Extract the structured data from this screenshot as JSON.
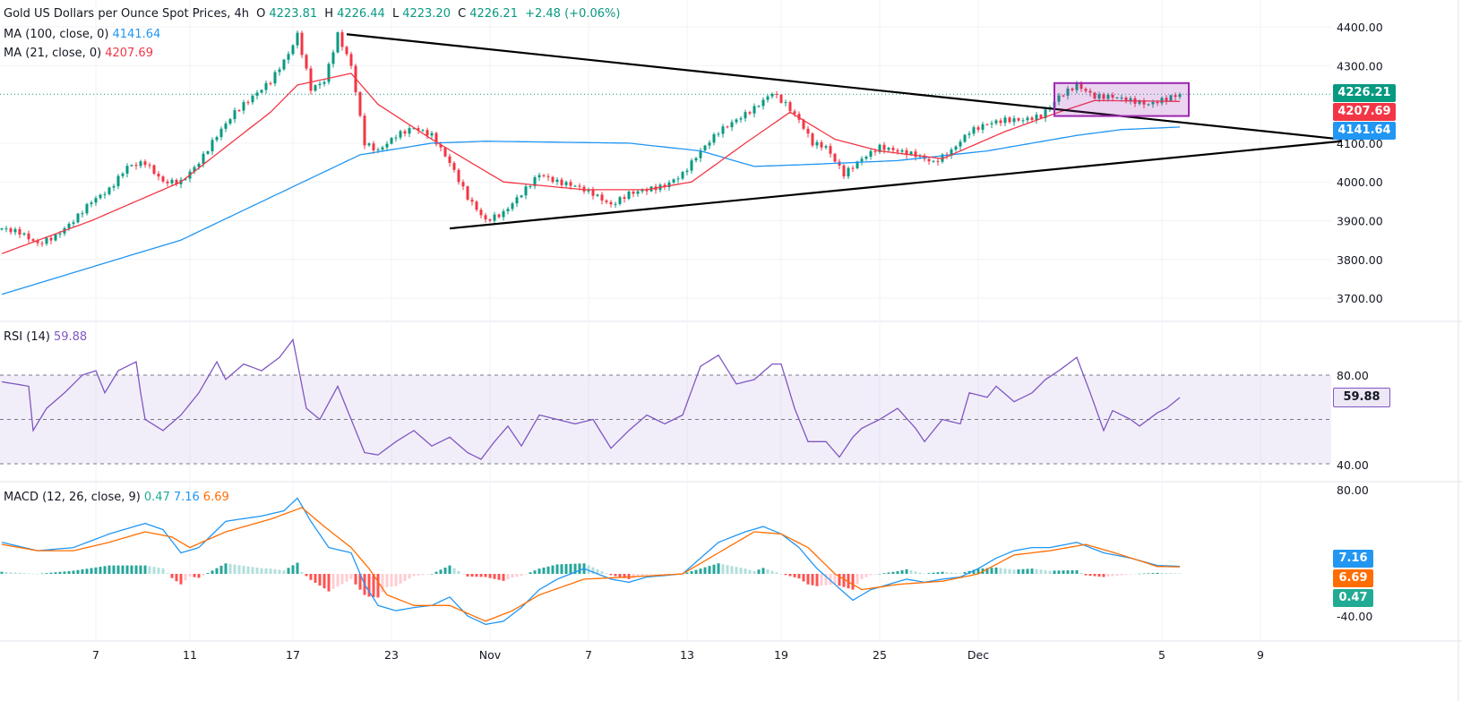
{
  "header": {
    "title": "Gold US Dollars per Ounce Spot Prices, 4h",
    "o_label": "O",
    "o": "4223.81",
    "h_label": "H",
    "h": "4226.44",
    "l_label": "L",
    "l": "4223.20",
    "c_label": "C",
    "c": "4226.21",
    "change": "+2.48 (+0.06%)"
  },
  "indicators": {
    "ma100_label": "MA (100, close, 0)",
    "ma100_value": "4141.64",
    "ma21_label": "MA (21, close, 0)",
    "ma21_value": "4207.69",
    "rsi_label": "RSI (14)",
    "rsi_value": "59.88",
    "macd_label": "MACD (12, 26, close, 9)",
    "macd_value": "0.47",
    "macd_line_value": "7.16",
    "signal_value": "6.69"
  },
  "price_tags": {
    "last": "4226.21",
    "ma21": "4207.69",
    "ma100": "4141.64",
    "rsi": "59.88",
    "macd_line": "7.16",
    "signal": "6.69",
    "hist": "0.47"
  },
  "colors": {
    "up": "#089981",
    "down": "#f23645",
    "ma100": "#2196f3",
    "ma21": "#f23645",
    "rsi": "#7e57c2",
    "macd": "#2196f3",
    "signal": "#ff6d00",
    "box": "#9c27b0"
  },
  "chart_data": {
    "type": "candlestick",
    "title": "Gold US Dollars per Ounce Spot Prices, 4h",
    "price_axis": {
      "range": [
        3700,
        4400
      ],
      "ticks": [
        "4400.00",
        "4300.00",
        "4100.00",
        "4000.00",
        "3900.00",
        "3800.00",
        "3700.00"
      ]
    },
    "x_ticks": [
      {
        "label": "7",
        "bar": 21
      },
      {
        "label": "11",
        "bar": 42
      },
      {
        "label": "17",
        "bar": 65
      },
      {
        "label": "23",
        "bar": 87
      },
      {
        "label": "Nov",
        "bar": 109
      },
      {
        "label": "7",
        "bar": 131
      },
      {
        "label": "13",
        "bar": 153
      },
      {
        "label": "19",
        "bar": 174
      },
      {
        "label": "25",
        "bar": 196
      },
      {
        "label": "Dec",
        "bar": 218
      },
      {
        "label": "5",
        "bar": 259
      },
      {
        "label": "9",
        "bar": 281
      }
    ],
    "close": [
      [
        0,
        3880
      ],
      [
        4,
        3870
      ],
      [
        8,
        3840
      ],
      [
        12,
        3860
      ],
      [
        16,
        3900
      ],
      [
        20,
        3950
      ],
      [
        24,
        3980
      ],
      [
        28,
        4040
      ],
      [
        32,
        4050
      ],
      [
        36,
        4000
      ],
      [
        40,
        4000
      ],
      [
        44,
        4050
      ],
      [
        48,
        4120
      ],
      [
        52,
        4180
      ],
      [
        56,
        4220
      ],
      [
        60,
        4260
      ],
      [
        64,
        4330
      ],
      [
        66,
        4380
      ],
      [
        69,
        4240
      ],
      [
        72,
        4260
      ],
      [
        75,
        4380
      ],
      [
        78,
        4300
      ],
      [
        81,
        4100
      ],
      [
        84,
        4080
      ],
      [
        88,
        4120
      ],
      [
        92,
        4140
      ],
      [
        96,
        4120
      ],
      [
        100,
        4050
      ],
      [
        104,
        3960
      ],
      [
        108,
        3900
      ],
      [
        112,
        3920
      ],
      [
        116,
        3970
      ],
      [
        120,
        4020
      ],
      [
        124,
        4000
      ],
      [
        128,
        3990
      ],
      [
        132,
        3970
      ],
      [
        136,
        3940
      ],
      [
        140,
        3970
      ],
      [
        144,
        3980
      ],
      [
        148,
        3990
      ],
      [
        152,
        4020
      ],
      [
        156,
        4080
      ],
      [
        160,
        4130
      ],
      [
        164,
        4160
      ],
      [
        168,
        4190
      ],
      [
        172,
        4230
      ],
      [
        175,
        4200
      ],
      [
        178,
        4160
      ],
      [
        181,
        4100
      ],
      [
        184,
        4090
      ],
      [
        188,
        4020
      ],
      [
        192,
        4060
      ],
      [
        196,
        4090
      ],
      [
        200,
        4080
      ],
      [
        204,
        4070
      ],
      [
        208,
        4050
      ],
      [
        212,
        4080
      ],
      [
        216,
        4130
      ],
      [
        220,
        4150
      ],
      [
        224,
        4160
      ],
      [
        228,
        4160
      ],
      [
        232,
        4170
      ],
      [
        236,
        4220
      ],
      [
        240,
        4250
      ],
      [
        244,
        4220
      ],
      [
        248,
        4220
      ],
      [
        252,
        4210
      ],
      [
        256,
        4200
      ],
      [
        260,
        4215
      ],
      [
        263,
        4226.21
      ]
    ],
    "ma100": [
      [
        0,
        3710
      ],
      [
        40,
        3850
      ],
      [
        60,
        3960
      ],
      [
        80,
        4070
      ],
      [
        96,
        4100
      ],
      [
        108,
        4105
      ],
      [
        140,
        4100
      ],
      [
        156,
        4080
      ],
      [
        168,
        4040
      ],
      [
        180,
        4045
      ],
      [
        200,
        4055
      ],
      [
        220,
        4080
      ],
      [
        240,
        4120
      ],
      [
        250,
        4135
      ],
      [
        263,
        4141.64
      ]
    ],
    "ma21": [
      [
        0,
        3815
      ],
      [
        20,
        3900
      ],
      [
        40,
        4000
      ],
      [
        60,
        4180
      ],
      [
        66,
        4250
      ],
      [
        78,
        4280
      ],
      [
        84,
        4200
      ],
      [
        96,
        4110
      ],
      [
        112,
        4000
      ],
      [
        130,
        3980
      ],
      [
        144,
        3980
      ],
      [
        154,
        4000
      ],
      [
        166,
        4100
      ],
      [
        176,
        4180
      ],
      [
        186,
        4110
      ],
      [
        196,
        4080
      ],
      [
        210,
        4060
      ],
      [
        224,
        4130
      ],
      [
        236,
        4180
      ],
      [
        244,
        4210
      ],
      [
        263,
        4207.69
      ]
    ],
    "triangle": {
      "upper": {
        "from": [
          77,
          4381
        ],
        "to": [
          299,
          4110
        ]
      },
      "lower": {
        "from": [
          100,
          3880
        ],
        "to": [
          299,
          4105
        ]
      }
    },
    "range_box": {
      "bars": [
        235,
        265
      ],
      "prices": [
        4170,
        4255
      ]
    },
    "rsi": {
      "range_labels": [
        "80.00",
        "40.00"
      ],
      "bands": [
        30,
        50,
        70
      ],
      "values": [
        [
          0,
          67
        ],
        [
          6,
          65
        ],
        [
          7,
          45
        ],
        [
          10,
          55
        ],
        [
          14,
          62
        ],
        [
          18,
          70
        ],
        [
          21,
          72
        ],
        [
          23,
          62
        ],
        [
          26,
          72
        ],
        [
          30,
          76
        ],
        [
          31,
          62
        ],
        [
          32,
          50
        ],
        [
          36,
          45
        ],
        [
          40,
          52
        ],
        [
          44,
          62
        ],
        [
          48,
          76
        ],
        [
          50,
          68
        ],
        [
          54,
          75
        ],
        [
          58,
          72
        ],
        [
          62,
          78
        ],
        [
          65,
          86
        ],
        [
          68,
          55
        ],
        [
          71,
          50
        ],
        [
          75,
          65
        ],
        [
          78,
          50
        ],
        [
          81,
          35
        ],
        [
          84,
          34
        ],
        [
          88,
          40
        ],
        [
          92,
          45
        ],
        [
          96,
          38
        ],
        [
          100,
          42
        ],
        [
          104,
          35
        ],
        [
          107,
          32
        ],
        [
          110,
          40
        ],
        [
          113,
          47
        ],
        [
          116,
          38
        ],
        [
          120,
          52
        ],
        [
          124,
          50
        ],
        [
          128,
          48
        ],
        [
          132,
          50
        ],
        [
          136,
          37
        ],
        [
          140,
          45
        ],
        [
          144,
          52
        ],
        [
          148,
          48
        ],
        [
          152,
          52
        ],
        [
          156,
          74
        ],
        [
          160,
          79
        ],
        [
          164,
          66
        ],
        [
          168,
          68
        ],
        [
          172,
          75
        ],
        [
          174,
          75
        ],
        [
          177,
          55
        ],
        [
          180,
          40
        ],
        [
          184,
          40
        ],
        [
          187,
          33
        ],
        [
          190,
          42
        ],
        [
          192,
          46
        ],
        [
          196,
          50
        ],
        [
          200,
          55
        ],
        [
          204,
          46
        ],
        [
          206,
          40
        ],
        [
          210,
          50
        ],
        [
          214,
          48
        ],
        [
          216,
          62
        ],
        [
          220,
          60
        ],
        [
          222,
          65
        ],
        [
          226,
          58
        ],
        [
          230,
          62
        ],
        [
          233,
          68
        ],
        [
          236,
          72
        ],
        [
          240,
          78
        ],
        [
          243,
          62
        ],
        [
          246,
          45
        ],
        [
          248,
          54
        ],
        [
          252,
          50
        ],
        [
          254,
          47
        ],
        [
          258,
          53
        ],
        [
          260,
          55
        ],
        [
          263,
          59.88
        ]
      ]
    },
    "macd": {
      "range_labels": [
        "80.00",
        "-40.00"
      ],
      "macd": [
        [
          0,
          30
        ],
        [
          8,
          22
        ],
        [
          16,
          25
        ],
        [
          24,
          38
        ],
        [
          32,
          48
        ],
        [
          36,
          42
        ],
        [
          40,
          20
        ],
        [
          44,
          25
        ],
        [
          50,
          50
        ],
        [
          58,
          55
        ],
        [
          63,
          60
        ],
        [
          66,
          72
        ],
        [
          69,
          50
        ],
        [
          73,
          25
        ],
        [
          78,
          20
        ],
        [
          81,
          -10
        ],
        [
          84,
          -30
        ],
        [
          88,
          -35
        ],
        [
          92,
          -32
        ],
        [
          96,
          -30
        ],
        [
          100,
          -22
        ],
        [
          104,
          -40
        ],
        [
          108,
          -48
        ],
        [
          112,
          -45
        ],
        [
          116,
          -32
        ],
        [
          120,
          -15
        ],
        [
          124,
          -5
        ],
        [
          130,
          5
        ],
        [
          136,
          -5
        ],
        [
          140,
          -8
        ],
        [
          144,
          -3
        ],
        [
          152,
          0
        ],
        [
          156,
          15
        ],
        [
          160,
          30
        ],
        [
          166,
          40
        ],
        [
          170,
          45
        ],
        [
          174,
          38
        ],
        [
          178,
          25
        ],
        [
          182,
          5
        ],
        [
          186,
          -10
        ],
        [
          190,
          -25
        ],
        [
          194,
          -15
        ],
        [
          198,
          -10
        ],
        [
          202,
          -5
        ],
        [
          206,
          -8
        ],
        [
          210,
          -5
        ],
        [
          214,
          -3
        ],
        [
          218,
          5
        ],
        [
          222,
          15
        ],
        [
          226,
          22
        ],
        [
          230,
          25
        ],
        [
          234,
          25
        ],
        [
          240,
          30
        ],
        [
          246,
          20
        ],
        [
          252,
          15
        ],
        [
          258,
          8
        ],
        [
          263,
          7.16
        ]
      ],
      "signal": [
        [
          0,
          28
        ],
        [
          8,
          22
        ],
        [
          16,
          22
        ],
        [
          24,
          30
        ],
        [
          32,
          40
        ],
        [
          38,
          35
        ],
        [
          42,
          25
        ],
        [
          50,
          40
        ],
        [
          60,
          52
        ],
        [
          67,
          63
        ],
        [
          72,
          45
        ],
        [
          78,
          25
        ],
        [
          82,
          5
        ],
        [
          86,
          -20
        ],
        [
          92,
          -30
        ],
        [
          100,
          -30
        ],
        [
          108,
          -45
        ],
        [
          114,
          -35
        ],
        [
          120,
          -20
        ],
        [
          130,
          -5
        ],
        [
          140,
          -3
        ],
        [
          152,
          0
        ],
        [
          160,
          20
        ],
        [
          168,
          40
        ],
        [
          174,
          38
        ],
        [
          180,
          25
        ],
        [
          186,
          0
        ],
        [
          192,
          -15
        ],
        [
          200,
          -10
        ],
        [
          210,
          -7
        ],
        [
          218,
          0
        ],
        [
          226,
          18
        ],
        [
          234,
          22
        ],
        [
          242,
          28
        ],
        [
          250,
          18
        ],
        [
          258,
          7
        ],
        [
          263,
          6.69
        ]
      ]
    }
  }
}
